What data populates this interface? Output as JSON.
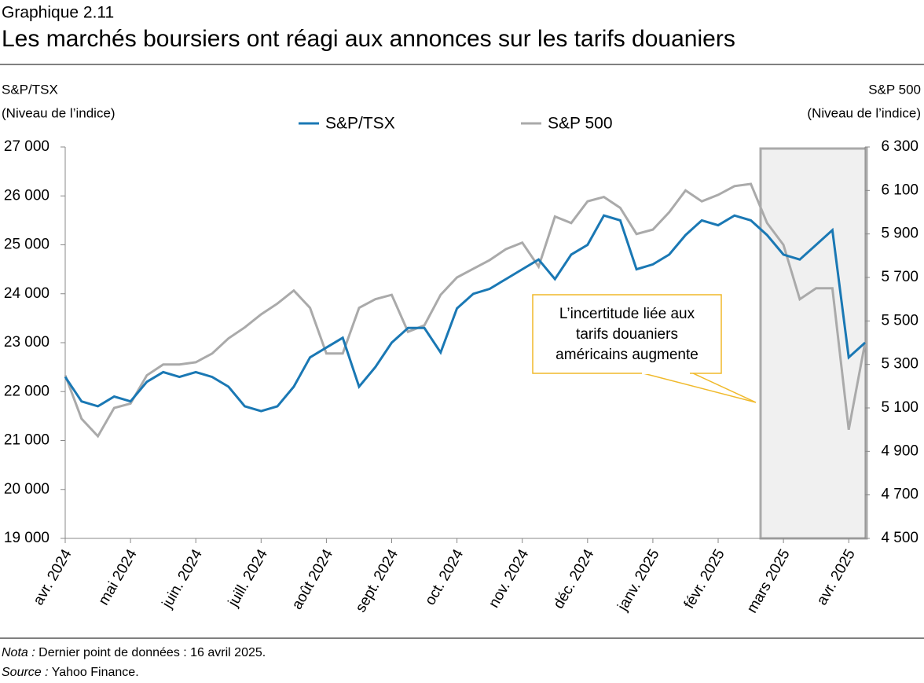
{
  "chart_data": {
    "type": "line",
    "label": "Graphique 2.11",
    "title": "Les marchés boursiers ont réagi aux annonces sur les tarifs douaniers",
    "ylabel": [
      "S&P/TSX",
      "(Niveau de l’indice)"
    ],
    "y2label": [
      "S&P 500",
      "(Niveau de l’indice)"
    ],
    "categories": [
      "avr. 2024",
      null,
      null,
      null,
      "mai 2024",
      null,
      null,
      null,
      "juin. 2024",
      null,
      null,
      null,
      "juill. 2024",
      null,
      null,
      null,
      "août 2024",
      null,
      null,
      null,
      "sept. 2024",
      null,
      null,
      null,
      "oct. 2024",
      null,
      null,
      null,
      "nov. 2024",
      null,
      null,
      null,
      "déc. 2024",
      null,
      null,
      null,
      "janv. 2025",
      null,
      null,
      null,
      "févr. 2025",
      null,
      null,
      null,
      "mars 2025",
      null,
      null,
      null,
      "avr. 2025",
      null
    ],
    "series": [
      {
        "name": "S&P/TSX",
        "color": "#1a78b4",
        "values": [
          22300,
          21800,
          21700,
          21900,
          21800,
          22200,
          22400,
          22300,
          22400,
          22300,
          22100,
          21700,
          21600,
          21700,
          22100,
          22700,
          22900,
          23100,
          22100,
          22500,
          23000,
          23300,
          23300,
          22800,
          23700,
          24000,
          24100,
          24300,
          24500,
          24700,
          24300,
          24800,
          25000,
          25600,
          25500,
          24500,
          24600,
          24800,
          25200,
          25500,
          25400,
          25600,
          25500,
          25200,
          24800,
          24700,
          25000,
          25300,
          22700,
          23000
        ]
      },
      {
        "name": "S&P 500",
        "color": "#aaaaaa",
        "axis": "y2",
        "values": [
          5250,
          5050,
          4970,
          5100,
          5120,
          5250,
          5300,
          5300,
          5310,
          5350,
          5420,
          5470,
          5530,
          5580,
          5640,
          5560,
          5350,
          5350,
          5560,
          5600,
          5620,
          5450,
          5480,
          5620,
          5700,
          5740,
          5780,
          5830,
          5860,
          5750,
          5980,
          5950,
          6050,
          6070,
          6020,
          5900,
          5920,
          6000,
          6100,
          6050,
          6080,
          6120,
          6130,
          5950,
          5850,
          5600,
          5650,
          5650,
          5000,
          5400
        ]
      }
    ],
    "ylim": [
      19000,
      27000
    ],
    "yticks": [
      {
        "value": 19000,
        "label": "19 000"
      },
      {
        "value": 20000,
        "label": "20 000"
      },
      {
        "value": 21000,
        "label": "21 000"
      },
      {
        "value": 22000,
        "label": "22 000"
      },
      {
        "value": 23000,
        "label": "23 000"
      },
      {
        "value": 24000,
        "label": "24 000"
      },
      {
        "value": 25000,
        "label": "25 000"
      },
      {
        "value": 26000,
        "label": "26 000"
      },
      {
        "value": 27000,
        "label": "27 000"
      }
    ],
    "y2lim": [
      4500,
      6300
    ],
    "y2ticks": [
      {
        "value": 4500,
        "label": "4 500"
      },
      {
        "value": 4700,
        "label": "4 700"
      },
      {
        "value": 4900,
        "label": "4 900"
      },
      {
        "value": 5100,
        "label": "5 100"
      },
      {
        "value": 5300,
        "label": "5 300"
      },
      {
        "value": 5500,
        "label": "5 500"
      },
      {
        "value": 5700,
        "label": "5 700"
      },
      {
        "value": 5900,
        "label": "5 900"
      },
      {
        "value": 6100,
        "label": "6 100"
      },
      {
        "value": 6300,
        "label": "6 300"
      }
    ],
    "annotation": [
      "L’incertitude liée aux",
      "tarifs douaniers",
      "américains augmente"
    ],
    "note": {
      "label": "Nota :",
      "text": "Dernier point de données : 16 avril 2025."
    },
    "source": {
      "label": "Source :",
      "text": "Yahoo Finance."
    }
  }
}
